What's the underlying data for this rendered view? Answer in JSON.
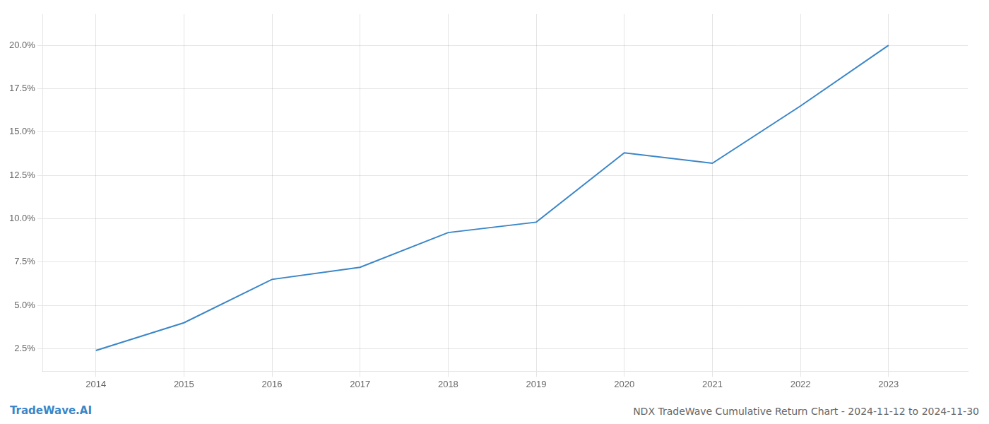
{
  "chart_data": {
    "type": "line",
    "title": "NDX TradeWave Cumulative Return Chart - 2024-11-12 to 2024-11-30",
    "annotations": [
      "TradeWave.AI"
    ],
    "x": [
      2014,
      2015,
      2016,
      2017,
      2018,
      2019,
      2020,
      2021,
      2022,
      2023
    ],
    "values": [
      0.024,
      0.04,
      0.065,
      0.072,
      0.092,
      0.098,
      0.138,
      0.132,
      0.165,
      0.2
    ],
    "color": "#3a86c8",
    "xlim": [
      2013.4,
      2023.9
    ],
    "xticks": [
      2014,
      2015,
      2016,
      2017,
      2018,
      2019,
      2020,
      2021,
      2022,
      2023
    ],
    "ylim": [
      0.012,
      0.218
    ],
    "yticks": [
      {
        "value": 0.025,
        "label": "2.5%"
      },
      {
        "value": 0.05,
        "label": "5.0%"
      },
      {
        "value": 0.075,
        "label": "7.5%"
      },
      {
        "value": 0.1,
        "label": "10.0%"
      },
      {
        "value": 0.125,
        "label": "12.5%"
      },
      {
        "value": 0.15,
        "label": "15.0%"
      },
      {
        "value": 0.175,
        "label": "17.5%"
      },
      {
        "value": 0.2,
        "label": "20.0%"
      }
    ],
    "grid": true
  }
}
